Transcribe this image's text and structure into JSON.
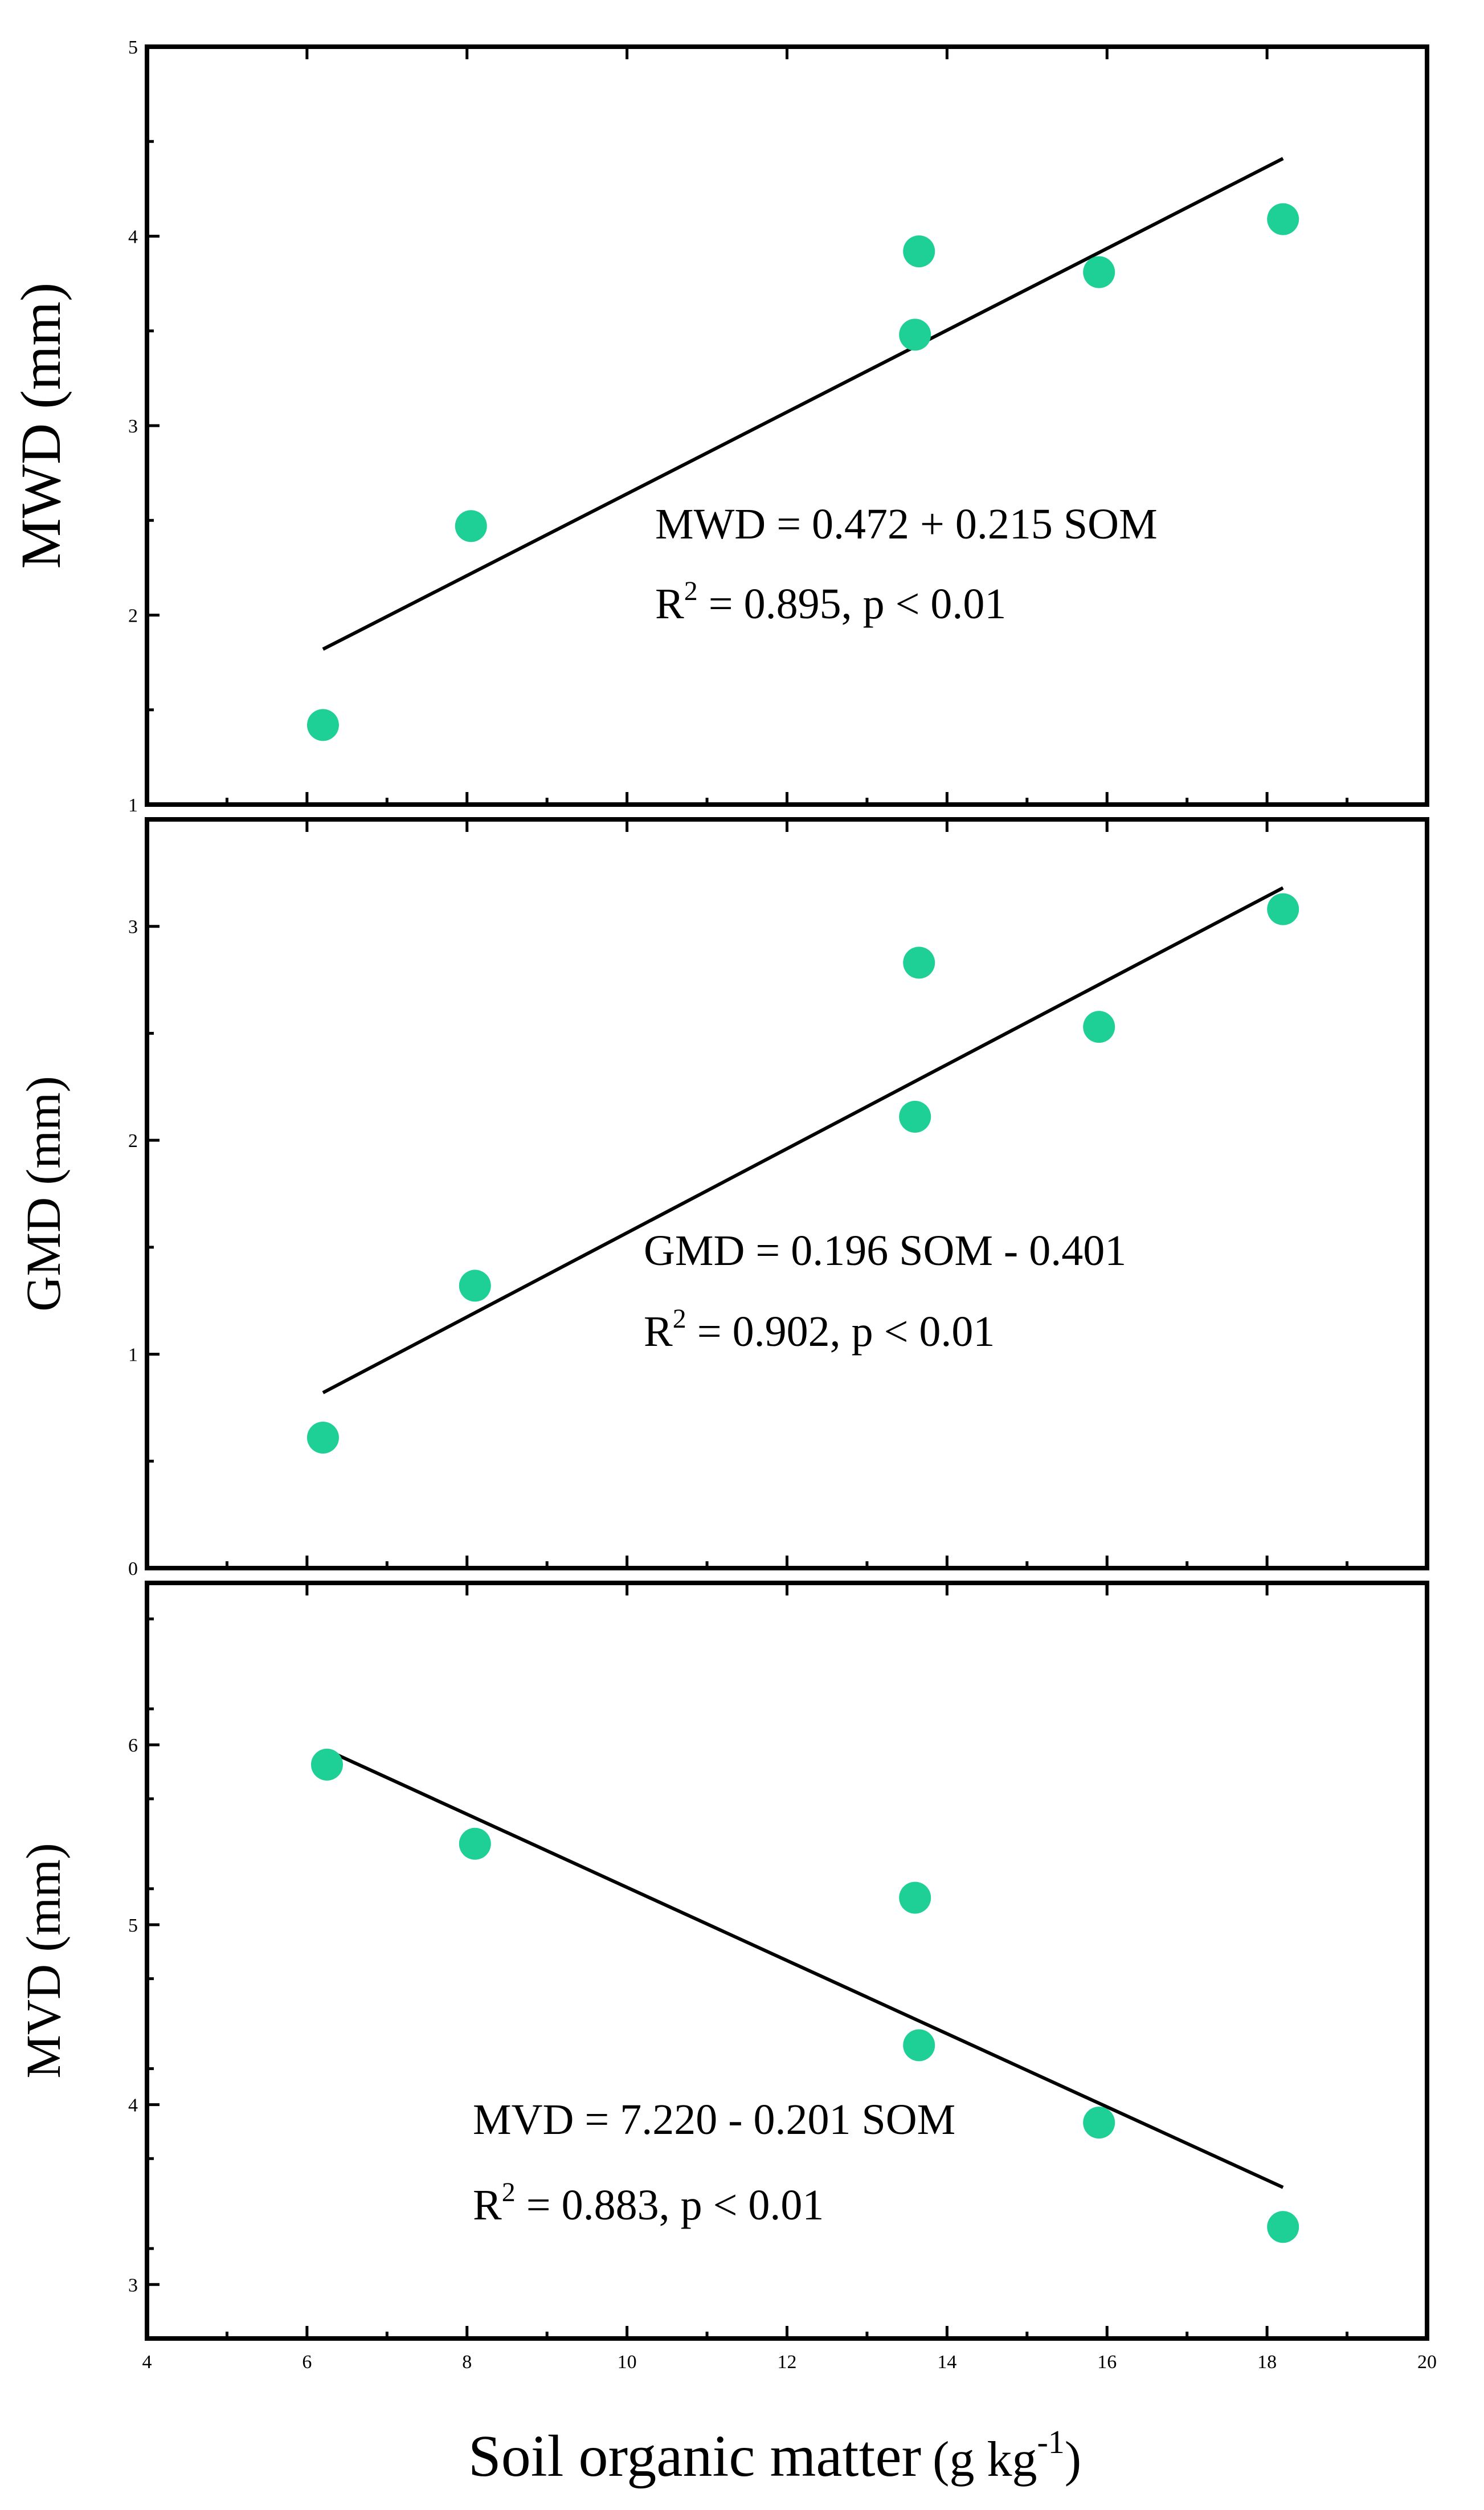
{
  "chart_data": [
    {
      "type": "scatter",
      "panel": "top",
      "ylabel": "MWD (mm)",
      "ylim": [
        1,
        5
      ],
      "yticks": [
        1,
        2,
        3,
        4,
        5
      ],
      "xlim": [
        4,
        20
      ],
      "xticks": [
        4,
        6,
        8,
        10,
        12,
        14,
        16,
        18,
        20
      ],
      "show_x_tick_labels": false,
      "points": [
        {
          "x": 6.2,
          "y": 1.42
        },
        {
          "x": 8.05,
          "y": 2.47
        },
        {
          "x": 13.6,
          "y": 3.48
        },
        {
          "x": 13.65,
          "y": 3.92
        },
        {
          "x": 15.9,
          "y": 3.81
        },
        {
          "x": 18.2,
          "y": 4.09
        }
      ],
      "fit_line": {
        "x0": 6.2,
        "y0": 1.82,
        "x1": 18.2,
        "y1": 4.41
      },
      "equation": "MWD = 0.472 + 0.215 SOM",
      "r2_label": "R",
      "r2_superscript": "2",
      "r2_text": " = 0.895, p < 0.01",
      "marker_color": "#1ecf96"
    },
    {
      "type": "scatter",
      "panel": "middle",
      "ylabel": "GMD (mm)",
      "ylim": [
        0,
        3.5
      ],
      "yticks": [
        0,
        1,
        2,
        3
      ],
      "xlim": [
        4,
        20
      ],
      "xticks": [
        4,
        6,
        8,
        10,
        12,
        14,
        16,
        18,
        20
      ],
      "show_x_tick_labels": false,
      "points": [
        {
          "x": 6.2,
          "y": 0.61
        },
        {
          "x": 8.1,
          "y": 1.32
        },
        {
          "x": 13.6,
          "y": 2.11
        },
        {
          "x": 13.65,
          "y": 2.83
        },
        {
          "x": 15.9,
          "y": 2.53
        },
        {
          "x": 18.2,
          "y": 3.08
        }
      ],
      "fit_line": {
        "x0": 6.2,
        "y0": 0.82,
        "x1": 18.2,
        "y1": 3.18
      },
      "equation": "GMD = 0.196 SOM - 0.401",
      "r2_label": "R",
      "r2_superscript": "2",
      "r2_text": " = 0.902, p < 0.01",
      "marker_color": "#1ecf96"
    },
    {
      "type": "scatter",
      "panel": "bottom",
      "ylabel": "MVD (mm)",
      "ylim": [
        2.7,
        6.9
      ],
      "yticks": [
        3,
        4,
        5,
        6
      ],
      "xlim": [
        4,
        20
      ],
      "xticks": [
        4,
        6,
        8,
        10,
        12,
        14,
        16,
        18,
        20
      ],
      "show_x_tick_labels": true,
      "points": [
        {
          "x": 6.25,
          "y": 5.89
        },
        {
          "x": 8.1,
          "y": 5.45
        },
        {
          "x": 13.6,
          "y": 5.15
        },
        {
          "x": 13.65,
          "y": 4.33
        },
        {
          "x": 15.9,
          "y": 3.9
        },
        {
          "x": 18.2,
          "y": 3.32
        }
      ],
      "fit_line": {
        "x0": 6.3,
        "y0": 5.96,
        "x1": 18.2,
        "y1": 3.54
      },
      "equation": "MVD = 7.220 - 0.201 SOM",
      "r2_label": "R",
      "r2_superscript": "2",
      "r2_text": " = 0.883, p < 0.01",
      "marker_color": "#1ecf96"
    }
  ],
  "xaxis": {
    "label_main": "Soil organic matter",
    "label_unit_prefix": "(g kg",
    "label_unit_superscript": "-1",
    "label_unit_suffix": ")"
  }
}
